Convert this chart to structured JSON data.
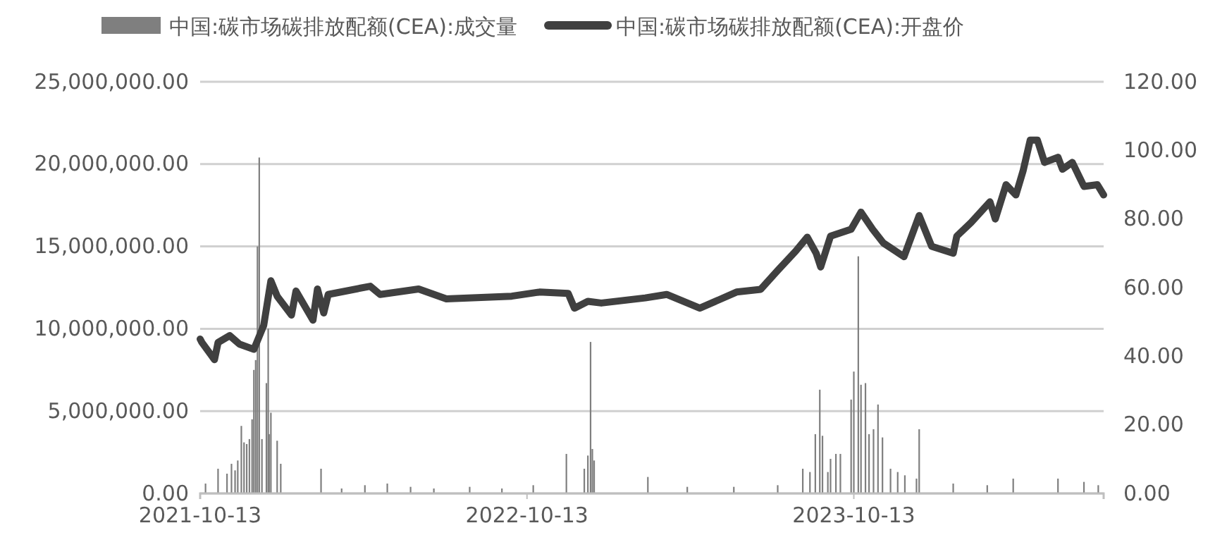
{
  "chart_data": {
    "type": "bar",
    "legend": "top",
    "grid": "y",
    "xlim": [
      "2021-10-13",
      "2024-07-18"
    ],
    "xticks": [
      {
        "value": "2021-10-13",
        "label": "2021-10-13"
      },
      {
        "value": "2022-10-13",
        "label": "2022-10-13"
      },
      {
        "value": "2023-10-13",
        "label": "2023-10-13"
      }
    ],
    "ylim": [
      0,
      25000000
    ],
    "yticks": [
      {
        "value": 0,
        "label": "0.00"
      },
      {
        "value": 5000000,
        "label": "5,000,000.00"
      },
      {
        "value": 10000000,
        "label": "10,000,000.00"
      },
      {
        "value": 15000000,
        "label": "15,000,000.00"
      },
      {
        "value": 20000000,
        "label": "20,000,000.00"
      },
      {
        "value": 25000000,
        "label": "25,000,000.00"
      }
    ],
    "y2lim": [
      0,
      120
    ],
    "y2ticks": [
      {
        "value": 0,
        "label": "0.00"
      },
      {
        "value": 20,
        "label": "20.00"
      },
      {
        "value": 40,
        "label": "40.00"
      },
      {
        "value": 60,
        "label": "60.00"
      },
      {
        "value": 80,
        "label": "80.00"
      },
      {
        "value": 100,
        "label": "100.00"
      },
      {
        "value": 120,
        "label": "120.00"
      }
    ],
    "series": [
      {
        "name": "中国:碳市场碳排放配额(CEA):成交量",
        "color": "#7f7f7f",
        "x": [
          "2021-10-19",
          "2021-11-02",
          "2021-11-12",
          "2021-11-17",
          "2021-11-21",
          "2021-11-24",
          "2021-11-28",
          "2021-12-01",
          "2021-12-04",
          "2021-12-07",
          "2021-12-10",
          "2021-12-12",
          "2021-12-14",
          "2021-12-16",
          "2021-12-18",
          "2021-12-21",
          "2021-12-26",
          "2021-12-28",
          "2021-12-29",
          "2021-12-31",
          "2022-01-07",
          "2022-01-11",
          "2022-02-25",
          "2022-03-20",
          "2022-04-15",
          "2022-05-10",
          "2022-06-05",
          "2022-07-01",
          "2022-08-10",
          "2022-09-15",
          "2022-10-20",
          "2022-11-26",
          "2022-12-16",
          "2022-12-20",
          "2022-12-23",
          "2022-12-25",
          "2022-12-27",
          "2023-02-25",
          "2023-04-10",
          "2023-06-01",
          "2023-07-20",
          "2023-08-17",
          "2023-08-25",
          "2023-08-31",
          "2023-09-05",
          "2023-09-08",
          "2023-09-14",
          "2023-09-17",
          "2023-09-23",
          "2023-09-28",
          "2023-10-10",
          "2023-10-13",
          "2023-10-18",
          "2023-10-21",
          "2023-10-26",
          "2023-10-30",
          "2023-11-04",
          "2023-11-09",
          "2023-11-14",
          "2023-11-23",
          "2023-12-01",
          "2023-12-09",
          "2023-12-22",
          "2023-12-25",
          "2024-02-01",
          "2024-03-10",
          "2024-04-08",
          "2024-05-28",
          "2024-06-26",
          "2024-07-12"
        ],
        "values": [
          600000,
          1500000,
          1200000,
          1800000,
          1400000,
          2000000,
          4100000,
          3100000,
          3000000,
          3300000,
          4500000,
          7500000,
          8100000,
          15000000,
          20400000,
          3300000,
          6700000,
          10000000,
          3600000,
          4900000,
          3200000,
          1800000,
          1500000,
          300000,
          500000,
          600000,
          400000,
          300000,
          400000,
          300000,
          500000,
          2400000,
          1500000,
          2300000,
          9200000,
          2700000,
          2000000,
          1000000,
          400000,
          400000,
          500000,
          1500000,
          1300000,
          3600000,
          6300000,
          3500000,
          1300000,
          2100000,
          2400000,
          2400000,
          5700000,
          7400000,
          14400000,
          6600000,
          6700000,
          3600000,
          3900000,
          5400000,
          3400000,
          1500000,
          1300000,
          1100000,
          900000,
          3900000,
          600000,
          500000,
          900000,
          900000,
          700000,
          500000
        ]
      },
      {
        "name": "中国:碳市场碳排放配额(CEA):开盘价",
        "type": "line",
        "axis": "y2",
        "color": "#404040",
        "x": [
          "2021-10-13",
          "2021-10-15",
          "2021-10-29",
          "2021-11-02",
          "2021-11-15",
          "2021-11-26",
          "2021-12-12",
          "2021-12-23",
          "2021-12-31",
          "2022-01-07",
          "2022-01-23",
          "2022-01-28",
          "2022-02-16",
          "2022-02-21",
          "2022-02-28",
          "2022-03-05",
          "2022-04-21",
          "2022-05-02",
          "2022-06-14",
          "2022-07-15",
          "2022-09-26",
          "2022-10-27",
          "2022-11-28",
          "2022-12-05",
          "2022-12-20",
          "2023-01-04",
          "2023-02-22",
          "2023-03-18",
          "2023-04-24",
          "2023-06-04",
          "2023-07-01",
          "2023-07-20",
          "2023-08-09",
          "2023-08-22",
          "2023-09-01",
          "2023-09-06",
          "2023-09-17",
          "2023-10-10",
          "2023-10-21",
          "2023-11-03",
          "2023-11-15",
          "2023-12-08",
          "2023-12-25",
          "2024-01-08",
          "2024-02-01",
          "2024-02-05",
          "2024-02-21",
          "2024-03-13",
          "2024-03-19",
          "2024-03-31",
          "2024-04-11",
          "2024-04-19",
          "2024-04-27",
          "2024-05-05",
          "2024-05-13",
          "2024-05-28",
          "2024-06-02",
          "2024-06-13",
          "2024-06-26",
          "2024-07-11",
          "2024-07-18"
        ],
        "values": [
          45,
          44,
          39,
          44,
          46,
          43.5,
          42,
          49,
          62,
          57.5,
          52,
          59,
          50.5,
          59.6,
          52.6,
          58,
          60.4,
          58,
          59.6,
          56.7,
          57.5,
          58.7,
          58.3,
          54,
          56,
          55.5,
          57,
          58,
          54,
          58.7,
          59.5,
          65,
          70.6,
          74.7,
          70,
          66,
          75,
          77,
          82,
          77,
          73,
          69,
          81,
          72,
          70,
          75,
          79,
          85,
          80,
          90,
          87,
          94,
          103,
          103,
          96.5,
          98,
          94.5,
          96.5,
          89.5,
          90,
          87
        ]
      }
    ]
  }
}
